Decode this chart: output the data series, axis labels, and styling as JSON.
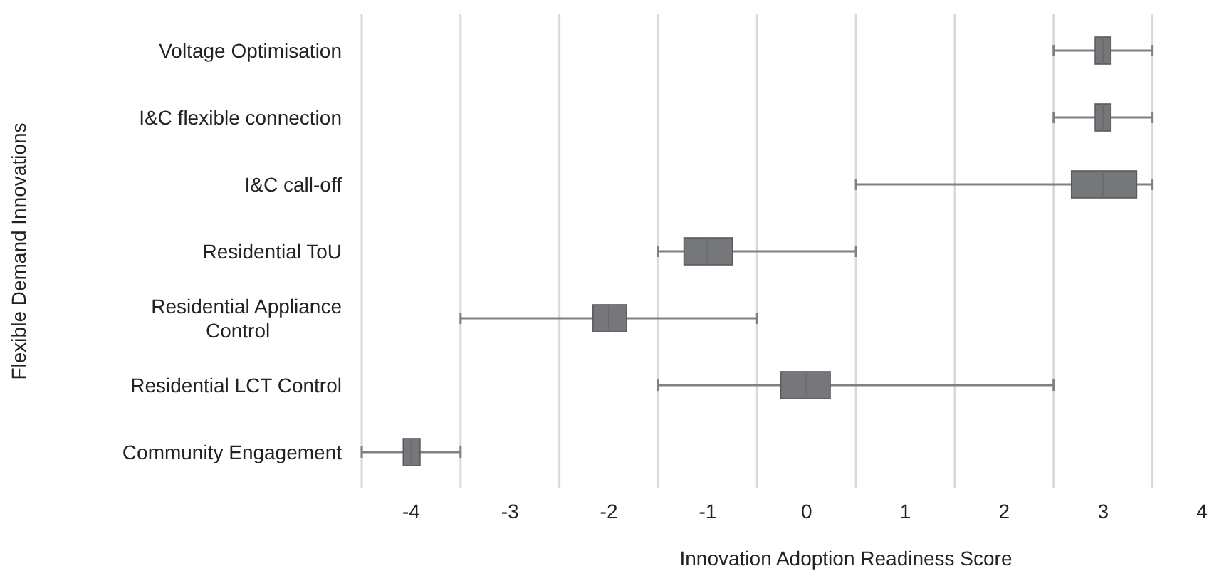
{
  "chart_data": {
    "type": "box",
    "orientation": "horizontal",
    "xlabel": "Innovation Adoption Readiness Score",
    "ylabel": "Flexible Demand Innovations",
    "categories": [
      "Voltage Optimisation",
      "I&C flexible connection",
      "I&C call-off",
      "Residential ToU",
      "Residential Appliance Control",
      "Residential LCT Control",
      "Community Engagement"
    ],
    "series": [
      {
        "color": "#76777b",
        "boxes": [
          {
            "low": 2.5,
            "q1": 2.92,
            "median": 3,
            "q3": 3.08,
            "high": 3.5
          },
          {
            "low": 2.5,
            "q1": 2.92,
            "median": 3,
            "q3": 3.08,
            "high": 3.5
          },
          {
            "low": 0.5,
            "q1": 2.68,
            "median": 3,
            "q3": 3.34,
            "high": 3.5
          },
          {
            "low": -1.5,
            "q1": -1.24,
            "median": -1,
            "q3": -0.75,
            "high": 0.5
          },
          {
            "low": -3.5,
            "q1": -2.16,
            "median": -2,
            "q3": -1.82,
            "high": -0.5
          },
          {
            "low": -1.5,
            "q1": -0.26,
            "median": 0,
            "q3": 0.24,
            "high": 2.5
          },
          {
            "low": -4.5,
            "q1": -4.08,
            "median": -4,
            "q3": -3.91,
            "high": -3.5
          }
        ]
      }
    ],
    "xlim": [
      -4.5,
      4
    ],
    "xticks": [
      {
        "value": -4.5,
        "label": null
      },
      -4,
      {
        "value": -3.5,
        "label": null
      },
      -3,
      {
        "value": -2.5,
        "label": null
      },
      -2,
      {
        "value": -1.5,
        "label": null
      },
      -1,
      {
        "value": -0.5,
        "label": null
      },
      0,
      {
        "value": 0.5,
        "label": null
      },
      1,
      {
        "value": 1.5,
        "label": null
      },
      2,
      {
        "value": 2.5,
        "label": null
      },
      3,
      {
        "value": 3.5,
        "label": null
      },
      4
    ],
    "grid": "x"
  }
}
